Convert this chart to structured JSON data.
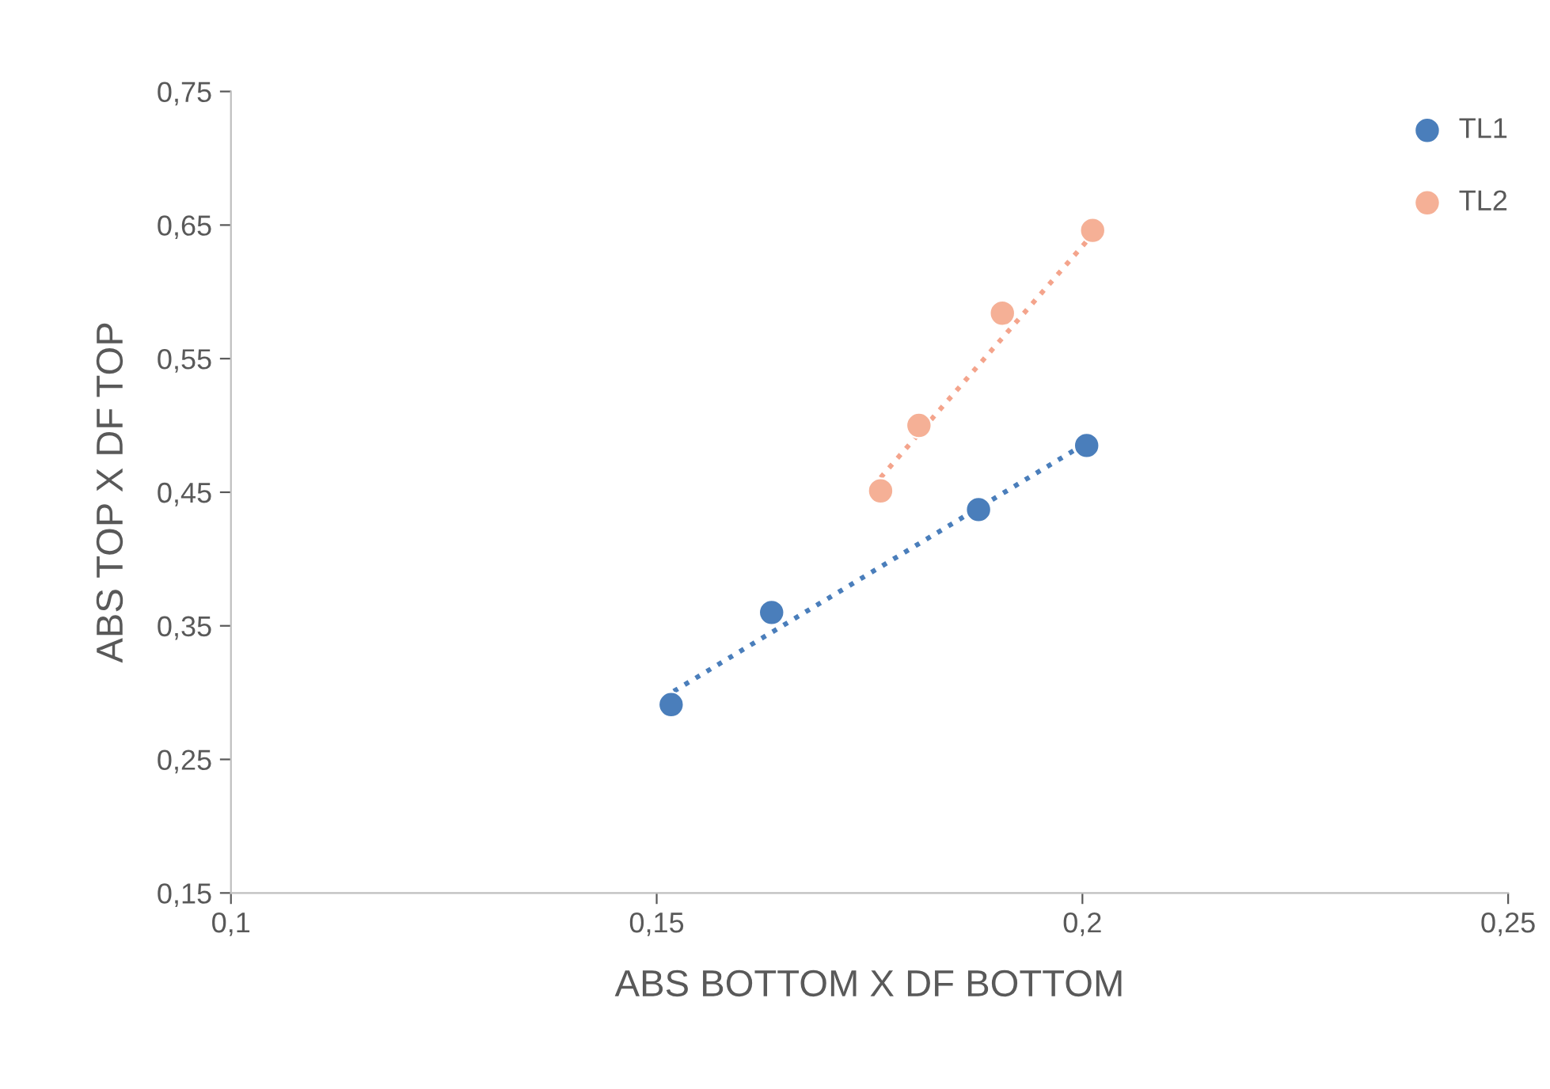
{
  "chart_data": {
    "type": "scatter",
    "xlabel": "ABS BOTTOM X DF BOTTOM",
    "ylabel": "ABS TOP X DF TOP",
    "xlim": [
      0.1,
      0.25
    ],
    "ylim": [
      0.15,
      0.75
    ],
    "xticks": [
      {
        "value": 0.1,
        "label": "0,1"
      },
      {
        "value": 0.15,
        "label": "0,15"
      },
      {
        "value": 0.2,
        "label": "0,2"
      },
      {
        "value": 0.25,
        "label": "0,25"
      }
    ],
    "yticks": [
      {
        "value": 0.15,
        "label": "0,15"
      },
      {
        "value": 0.25,
        "label": "0,25"
      },
      {
        "value": 0.35,
        "label": "0,35"
      },
      {
        "value": 0.45,
        "label": "0,45"
      },
      {
        "value": 0.55,
        "label": "0,55"
      },
      {
        "value": 0.65,
        "label": "0,65"
      },
      {
        "value": 0.75,
        "label": "0,75"
      }
    ],
    "grid": false,
    "legend": "top right",
    "marker": "circle",
    "series": [
      {
        "type": "line",
        "line_style": "dotted",
        "marker": "none",
        "color": "#4a7ebb",
        "x": [
          0.152,
          0.2005
        ],
        "values": [
          0.301,
          0.487
        ]
      },
      {
        "type": "line",
        "line_style": "dotted",
        "marker": "none",
        "color": "#f4a48c",
        "x": [
          0.1763,
          0.2012
        ],
        "values": [
          0.461,
          0.643
        ]
      },
      {
        "name": "TL1",
        "color": "#4a7ebb",
        "x": [
          0.1517,
          0.1635,
          0.1878,
          0.2005
        ],
        "values": [
          0.291,
          0.36,
          0.437,
          0.485
        ]
      },
      {
        "name": "TL2",
        "color": "#f5b096",
        "x": [
          0.1763,
          0.1808,
          0.1906,
          0.2012
        ],
        "values": [
          0.451,
          0.5,
          0.584,
          0.646
        ]
      }
    ]
  }
}
